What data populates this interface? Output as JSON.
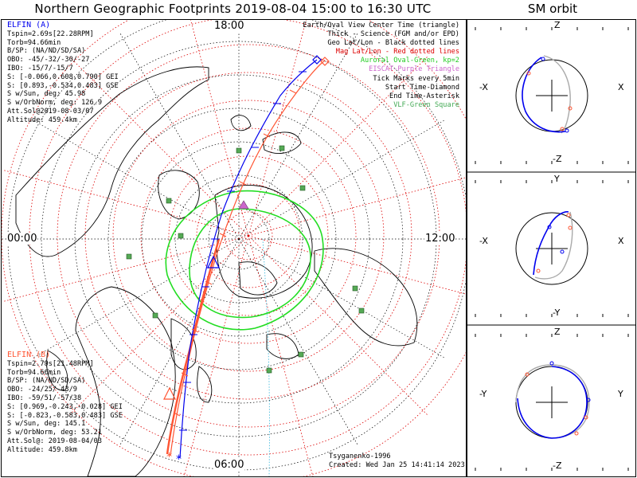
{
  "title": "Northern Geographic Footprints 2019-08-04 15:00 to 16:30 UTC",
  "orbit_title": "SM orbit",
  "colors": {
    "elfin_a": "#0000ee",
    "elfin_b": "#ff5533",
    "grid_geo": "#000000",
    "grid_mag": "#dd0000",
    "auroral_oval": "#22dd22",
    "eiscat": "#cc66cc",
    "vlf": "#55aa66",
    "noon_midnight_line": "#44bbdd"
  },
  "elfin_a": {
    "name": "ELFIN (A)",
    "lines": [
      "Tspin=2.69s[22.28RPM]",
      "Torb=94.66min",
      "B/SP: (NA/ND/SD/SA)",
      "OBO: -45/-32/-30/-27",
      "IBO: -15/7/-15/7",
      "S: [-0.066,0.608,0.790] GEI",
      "S: [0.893,-0.534,0.483] GSE",
      "S w/Sun, deg: 45.98",
      "S w/OrbNorm, deg: 126.9",
      "Att.Sol@2019-08-03/07",
      "Altitude: 459.4km"
    ]
  },
  "elfin_b": {
    "name": "ELFIN (B)",
    "lines": [
      "Tspin=2.79s[21.48RPM]",
      "Torb=94.66min",
      "B/SP: (NA/ND/SD/SA)",
      "OBO: -24/25/-43/9",
      "IBO: -59/51/-57/38",
      "S: [0.969,-0.243,-0.028] GEI",
      "S: [-0.823,-0.583,0.483] GSE",
      "S w/Sun, deg: 145.1",
      "S w/OrbNorm, deg: 53.21",
      "Att.Sol@: 2019-08-04/03",
      "Altitude: 459.8km"
    ]
  },
  "legend": [
    {
      "text": "Earth/Oval View Center Time (triangle)",
      "color": "#000000"
    },
    {
      "text": "Thick - Science (FGM and/or EPD)",
      "color": "#000000"
    },
    {
      "text": "Geo Lat/Lon - Black dotted lines",
      "color": "#000000"
    },
    {
      "text": "Mag Lat/Lon - Red dotted lines",
      "color": "#dd0000"
    },
    {
      "text": "Auroral Oval-Green, kp=2",
      "color": "#22cc22"
    },
    {
      "text": "EISCAT-Purple Triangle",
      "color": "#cc66cc"
    },
    {
      "text": "Tick Marks every 5min",
      "color": "#000000"
    },
    {
      "text": "Start Time-Diamond",
      "color": "#000000"
    },
    {
      "text": "End Time-Asterisk",
      "color": "#000000"
    },
    {
      "text": "VLF-Green Square",
      "color": "#44aa55"
    }
  ],
  "hours": {
    "top": "18:00",
    "left": "00:00",
    "right": "12:00",
    "bottom": "06:00"
  },
  "orbit_axes": {
    "panel1": {
      "top": "Z",
      "bottom": "-Z",
      "left": "-X",
      "right": "X"
    },
    "panel2": {
      "top": "Y",
      "bottom": "-Y",
      "left": "-X",
      "right": "X"
    },
    "panel3": {
      "top": "Z",
      "bottom": "-Z",
      "left": "-Y",
      "right": "Y"
    }
  },
  "footer": {
    "credit": "Tsyganenko-1996",
    "created": "Created: Wed Jan 25 14:41:14 2023"
  }
}
